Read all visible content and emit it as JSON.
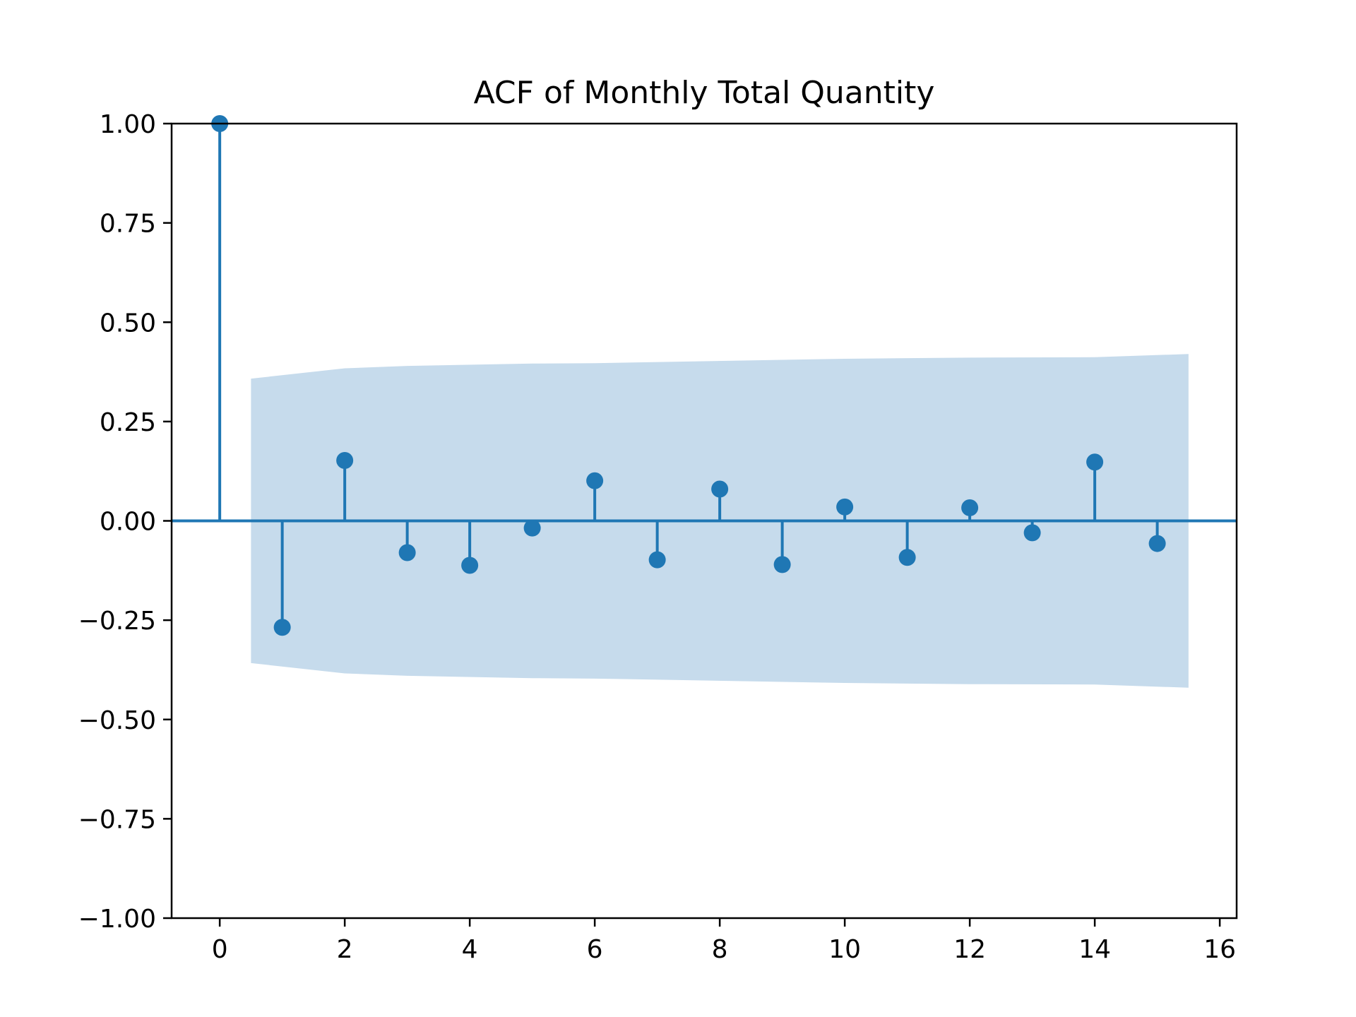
{
  "chart_data": {
    "type": "scatter",
    "subtype": "acf-stem",
    "title": "ACF of Monthly Total Quantity",
    "xlabel": "",
    "ylabel": "",
    "xlim": [
      -0.77,
      16.27
    ],
    "ylim": [
      -1.0,
      1.0
    ],
    "xticks": [
      0,
      2,
      4,
      6,
      8,
      10,
      12,
      14,
      16
    ],
    "xtick_labels": [
      "0",
      "2",
      "4",
      "6",
      "8",
      "10",
      "12",
      "14",
      "16"
    ],
    "yticks": [
      1.0,
      0.75,
      0.5,
      0.25,
      0.0,
      -0.25,
      -0.5,
      -0.75,
      -1.0
    ],
    "ytick_labels": [
      "1.00",
      "0.75",
      "0.50",
      "0.25",
      "0.00",
      "−0.25",
      "−0.50",
      "−0.75",
      "−1.00"
    ],
    "grid": false,
    "series": [
      {
        "x": [
          0,
          1,
          2,
          3,
          4,
          5,
          6,
          7,
          8,
          9,
          10,
          11,
          12,
          13,
          14,
          15
        ],
        "values": [
          1.0,
          -0.268,
          0.152,
          -0.08,
          -0.112,
          -0.018,
          0.101,
          -0.098,
          0.08,
          -0.11,
          0.035,
          -0.092,
          0.033,
          -0.03,
          0.148,
          -0.057
        ]
      }
    ],
    "confidence_band": {
      "x": [
        0.5,
        2,
        3,
        5,
        6,
        10,
        12,
        14,
        15.5
      ],
      "upper": [
        0.358,
        0.384,
        0.39,
        0.396,
        0.397,
        0.408,
        0.411,
        0.412,
        0.42
      ],
      "lower": [
        -0.358,
        -0.384,
        -0.39,
        -0.396,
        -0.397,
        -0.408,
        -0.411,
        -0.412,
        -0.42
      ]
    },
    "colors": {
      "series": "#1f77b4",
      "band": "#c6dbec"
    }
  }
}
